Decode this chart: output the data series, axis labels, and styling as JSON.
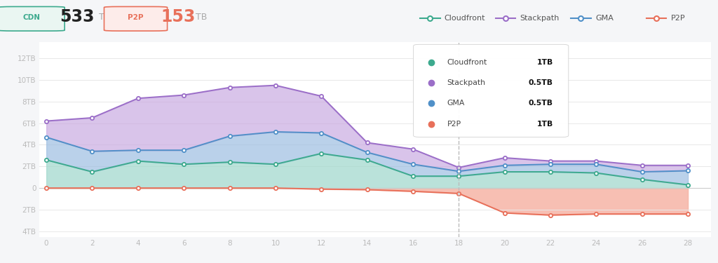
{
  "x": [
    0,
    2,
    4,
    6,
    8,
    10,
    12,
    14,
    16,
    18,
    20,
    22,
    24,
    26,
    28
  ],
  "cloudfront": [
    2.6,
    1.5,
    2.5,
    2.2,
    2.4,
    2.2,
    3.2,
    2.6,
    1.1,
    1.1,
    1.5,
    1.5,
    1.4,
    0.8,
    0.3
  ],
  "gma": [
    4.7,
    3.4,
    3.5,
    3.5,
    4.8,
    5.2,
    5.1,
    3.3,
    2.2,
    1.55,
    2.1,
    2.2,
    2.2,
    1.5,
    1.6
  ],
  "stackpath": [
    6.2,
    6.5,
    8.3,
    8.6,
    9.3,
    9.5,
    8.5,
    4.2,
    3.6,
    1.9,
    2.8,
    2.5,
    2.5,
    2.1,
    2.1
  ],
  "p2p": [
    0.0,
    0.0,
    0.0,
    0.0,
    0.0,
    0.0,
    -0.1,
    -0.15,
    -0.3,
    -0.5,
    -2.3,
    -2.5,
    -2.4,
    -2.4,
    -2.4
  ],
  "color_cloudfront": "#3daa8e",
  "color_gma": "#5090c8",
  "color_stackpath": "#9b6ec8",
  "color_p2p": "#e8705a",
  "color_fill_cloudfront": "#a0d8cc",
  "color_fill_gma": "#9abce0",
  "color_fill_stackpath": "#c8a8e0",
  "color_fill_p2p": "#f5b0a0",
  "bg_color": "#f5f6f8",
  "chart_bg": "#ffffff",
  "yticks": [
    -4,
    -2,
    0,
    2,
    4,
    6,
    8,
    10,
    12
  ],
  "ytick_labels": [
    "4TB",
    "2TB",
    "0",
    "2TB",
    "4TB",
    "6TB",
    "8TB",
    "10TB",
    "12TB"
  ],
  "xticks": [
    0,
    2,
    4,
    6,
    8,
    10,
    12,
    14,
    16,
    18,
    20,
    22,
    24,
    26,
    28
  ],
  "ylim": [
    -4.5,
    13.5
  ],
  "xlim": [
    -0.3,
    29
  ],
  "vline_x": 18,
  "grid_color": "#e8e8e8",
  "header_cdn_value": "533",
  "header_p2p_value": "153",
  "tooltip_entries": [
    {
      "label": "Cloudfront",
      "value": "1TB",
      "color": "#3daa8e"
    },
    {
      "label": "Stackpath",
      "value": "0.5TB",
      "color": "#9b6ec8"
    },
    {
      "label": "GMA",
      "value": "0.5TB",
      "color": "#5090c8"
    },
    {
      "label": "P2P",
      "value": "1TB",
      "color": "#e8705a"
    }
  ],
  "legend_items": [
    {
      "label": "Cloudfront",
      "color": "#3daa8e"
    },
    {
      "label": "Stackpath",
      "color": "#9b6ec8"
    },
    {
      "label": "GMA",
      "color": "#5090c8"
    },
    {
      "label": "P2P",
      "color": "#e8705a"
    }
  ]
}
